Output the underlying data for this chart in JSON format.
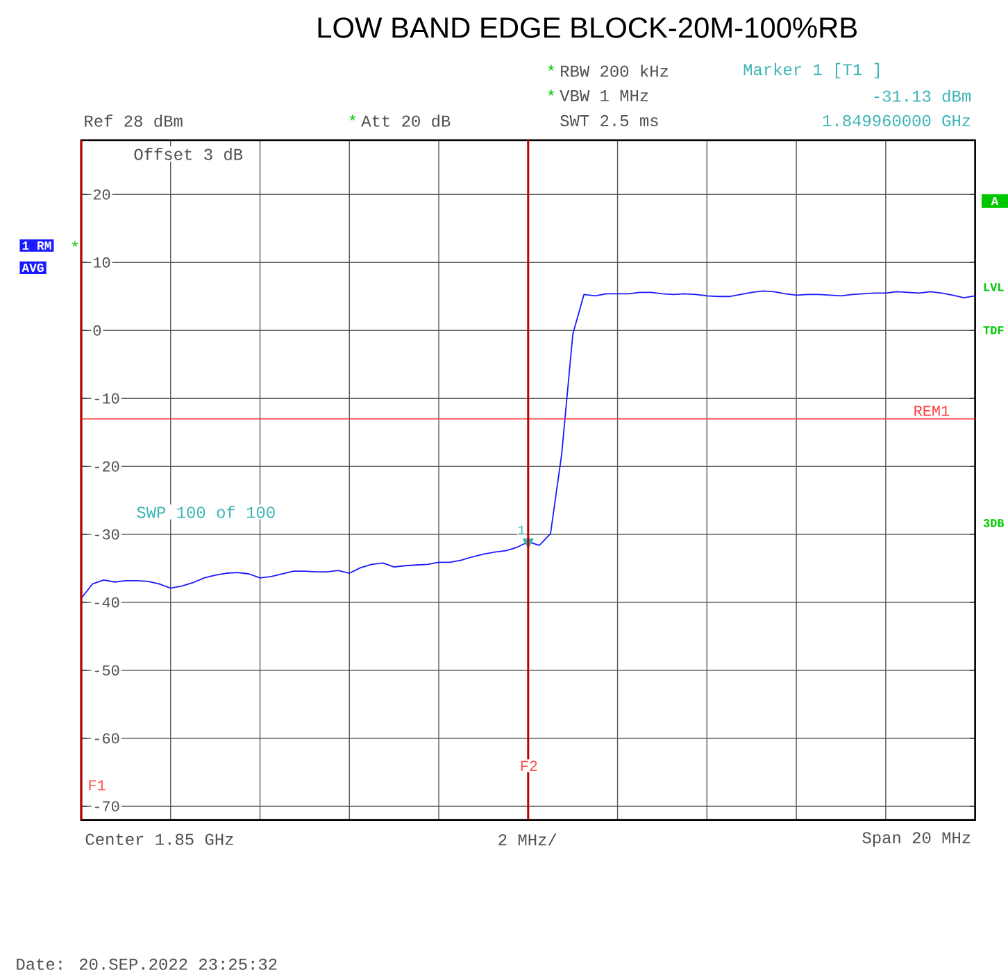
{
  "chart_data": {
    "type": "line",
    "title": "LOW BAND EDGE BLOCK-20M-100%RB",
    "categories": [
      null,
      null,
      null,
      null,
      null,
      null,
      null,
      null,
      null,
      null,
      null,
      null,
      null,
      null,
      null,
      null,
      null,
      null,
      null,
      null,
      null,
      null,
      null,
      null,
      null,
      null,
      null,
      null,
      null,
      null,
      null,
      null,
      null,
      null,
      null,
      null,
      null,
      null,
      null,
      null,
      null,
      null,
      null,
      null,
      null,
      null,
      null,
      null,
      null,
      null,
      null,
      null,
      null,
      null,
      null,
      null,
      null,
      null,
      null,
      null,
      null,
      null,
      null,
      null,
      null,
      null,
      null,
      null,
      null,
      null,
      null,
      null,
      null,
      null,
      null,
      null,
      null,
      null,
      null,
      null,
      null
    ],
    "series": [
      {
        "color": "#1a1aff",
        "values": [
          -39.4,
          -37.3,
          -36.7,
          -37.0,
          -36.8,
          -36.8,
          -36.9,
          -37.3,
          -37.9,
          -37.6,
          -37.1,
          -36.4,
          -36.0,
          -35.7,
          -35.6,
          -35.8,
          -36.4,
          -36.2,
          -35.8,
          -35.4,
          -35.4,
          -35.5,
          -35.5,
          -35.3,
          -35.7,
          -34.9,
          -34.4,
          -34.2,
          -34.8,
          -34.6,
          -34.5,
          -34.4,
          -34.1,
          -34.1,
          -33.8,
          -33.3,
          -32.9,
          -32.6,
          -32.4,
          -31.9,
          -31.1,
          -31.6,
          -29.9,
          -18.2,
          -0.5,
          5.3,
          5.1,
          5.4,
          5.4,
          5.4,
          5.6,
          5.6,
          5.4,
          5.3,
          5.4,
          5.3,
          5.1,
          5.0,
          5.0,
          5.3,
          5.6,
          5.8,
          5.7,
          5.4,
          5.2,
          5.3,
          5.3,
          5.2,
          5.1,
          5.3,
          5.4,
          5.5,
          5.5,
          5.7,
          5.6,
          5.5,
          5.7,
          5.5,
          5.2,
          4.8,
          5.1
        ]
      },
      {
        "type": "scatter",
        "marker": "triangle",
        "color": "#3db5b5",
        "values": [
          null,
          null,
          null,
          null,
          null,
          null,
          null,
          null,
          null,
          null,
          null,
          null,
          null,
          null,
          null,
          null,
          null,
          null,
          null,
          null,
          null,
          null,
          null,
          null,
          null,
          null,
          null,
          null,
          null,
          null,
          null,
          null,
          null,
          null,
          null,
          null,
          null,
          null,
          null,
          null,
          -31.1,
          null,
          null,
          null,
          null,
          null,
          null,
          null,
          null,
          null,
          null,
          null,
          null,
          null,
          null,
          null,
          null,
          null,
          null,
          null,
          null,
          null,
          null,
          null,
          null,
          null,
          null,
          null,
          null,
          null,
          null,
          null,
          null,
          null,
          null,
          null,
          null,
          null,
          null,
          null,
          null
        ]
      }
    ],
    "ylim": [
      -72,
      28
    ],
    "yticks": [
      20,
      10,
      0,
      -10,
      -20,
      -30,
      -40,
      -50,
      -60,
      -70
    ],
    "tick_labels": "y",
    "grid": true,
    "ref_lines": [
      {
        "axis": "y",
        "value": -13,
        "label": "REM1",
        "color": "#ff4040"
      }
    ],
    "annotations": [
      "*",
      "RBW 200 kHz",
      "*",
      "VBW 1 MHz",
      "Marker 1 [T1 ]",
      "-31.13 dBm",
      "Ref 28 dBm",
      "*",
      "Att 20 dB",
      "SWT 2.5 ms",
      "1.849960000 GHz",
      "Offset 3 dB",
      "1 RM",
      "*",
      "AVG",
      "A",
      "LVL",
      "TDF",
      "3DB",
      "SWP 100 of 100",
      "Center 1.85 GHz",
      "2 MHz/",
      "Span 20 MHz",
      "Date: 20.SEP.2022 23:25:32",
      {
        "text": "1",
        "y": -31.1
      },
      "F1",
      "F2"
    ]
  }
}
